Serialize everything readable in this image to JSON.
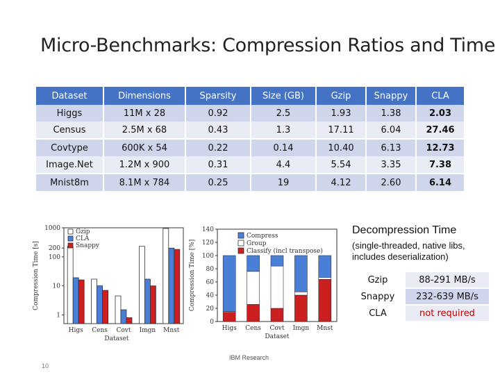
{
  "title": "Micro-Benchmarks: Compression Ratios and Time",
  "table": {
    "headers": [
      "Dataset",
      "Dimensions",
      "Sparsity",
      "Size (GB)",
      "Gzip",
      "Snappy",
      "CLA"
    ],
    "rows": [
      [
        "Higgs",
        "11M x 28",
        "0.92",
        "2.5",
        "1.93",
        "1.38",
        "2.03"
      ],
      [
        "Census",
        "2.5M x 68",
        "0.43",
        "1.3",
        "17.11",
        "6.04",
        "27.46"
      ],
      [
        "Covtype",
        "600K x 54",
        "0.22",
        "0.14",
        "10.40",
        "6.13",
        "12.73"
      ],
      [
        "Image.Net",
        "1.2M x 900",
        "0.31",
        "4.4",
        "5.54",
        "3.35",
        "7.38"
      ],
      [
        "Mnist8m",
        "8.1M x 784",
        "0.25",
        "19",
        "4.12",
        "2.60",
        "6.14"
      ]
    ]
  },
  "decompression": {
    "title": "Decompression Time",
    "subtitle": "(single-threaded, native libs, includes deserialization)",
    "rows": [
      {
        "lib": "Gzip",
        "rate": "88-291 MB/s"
      },
      {
        "lib": "Snappy",
        "rate": "232-639 MB/s"
      },
      {
        "lib": "CLA",
        "rate": "not required"
      }
    ]
  },
  "footer": "IBM Research",
  "page_number": "10",
  "chart_data": [
    {
      "type": "bar",
      "ylabel": "Compression Time [s]",
      "xlabel": "Dataset",
      "yscale": "log",
      "ylim": [
        0.5,
        1000
      ],
      "yticks": [
        "1000",
        "200",
        "100",
        "10",
        "1"
      ],
      "categories": [
        "Higs",
        "Cens",
        "Covt",
        "Imgn",
        "Mnst"
      ],
      "legend_position": "top-left",
      "series": [
        {
          "name": "Gzip",
          "color": "#ffffff",
          "values": [
            230,
            17,
            4.5,
            230,
            950
          ]
        },
        {
          "name": "CLA",
          "color": "#4a7fd8",
          "values": [
            19,
            10,
            1.5,
            17,
            200
          ]
        },
        {
          "name": "Snappy",
          "color": "#cc1f1f",
          "values": [
            16,
            7,
            0.8,
            10,
            180
          ]
        }
      ]
    },
    {
      "type": "bar",
      "stacked": true,
      "ylabel": "Compression Time [%]",
      "xlabel": "Dataset",
      "ylim": [
        0,
        140
      ],
      "yticks": [
        "0",
        "20",
        "40",
        "60",
        "80",
        "100",
        "120",
        "140"
      ],
      "categories": [
        "Higs",
        "Cens",
        "Covt",
        "Imgn",
        "Mnst"
      ],
      "legend_position": "top",
      "series": [
        {
          "name": "Classify (incl transpose)",
          "color": "#cc1f1f",
          "values": [
            14,
            26,
            20,
            40,
            64
          ]
        },
        {
          "name": "Group",
          "color": "#ffffff",
          "values": [
            1,
            50,
            64,
            5,
            3
          ]
        },
        {
          "name": "Compress",
          "color": "#4a7fd8",
          "values": [
            85,
            24,
            16,
            55,
            33
          ]
        }
      ]
    }
  ]
}
